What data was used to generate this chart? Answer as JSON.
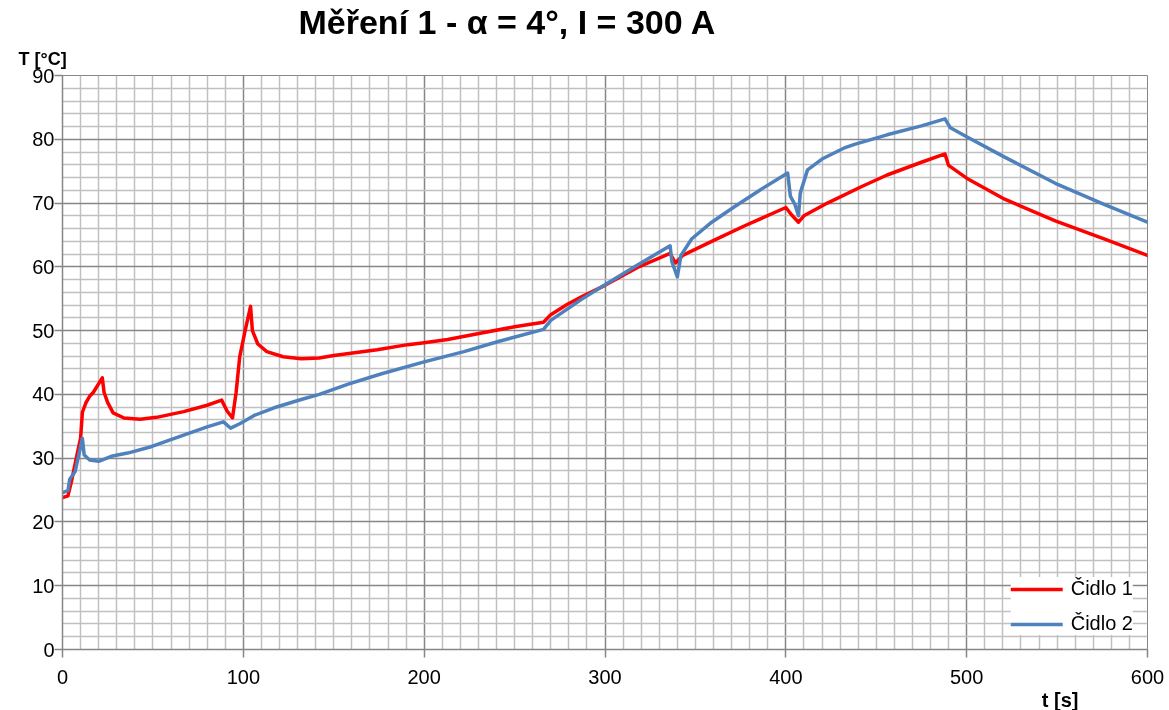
{
  "chart_data": {
    "type": "line",
    "title": "Měření 1 - α = 4°, I = 300 A",
    "xlabel": "t [s]",
    "ylabel": "T [°C]",
    "xlim": [
      0,
      600
    ],
    "ylim": [
      0,
      90
    ],
    "xticks": [
      0,
      100,
      200,
      300,
      400,
      500,
      600
    ],
    "yticks": [
      0,
      10,
      20,
      30,
      40,
      50,
      60,
      70,
      80,
      90
    ],
    "grid": true,
    "legend": "bottom right",
    "series": [
      {
        "name": "Čidlo 1",
        "color": "#ff0000",
        "x": [
          0,
          3,
          5,
          8,
          10,
          11,
          13,
          15,
          17,
          22,
          23,
          25,
          28,
          34,
          43,
          52,
          67,
          80,
          88,
          91,
          94,
          96,
          98,
          101,
          104,
          105,
          108,
          113,
          122,
          132,
          142,
          150,
          174,
          191,
          200,
          213,
          231,
          250,
          266,
          270,
          279,
          287,
          300,
          318,
          336,
          339,
          343,
          359,
          377,
          400,
          403,
          407,
          410,
          423,
          442,
          456,
          475,
          488,
          490,
          500,
          521,
          549,
          576,
          600
        ],
        "values": [
          23.8,
          24.1,
          26.4,
          30.5,
          33.1,
          37.2,
          38.7,
          39.7,
          40.3,
          42.6,
          40.3,
          38.7,
          37.1,
          36.3,
          36.1,
          36.4,
          37.3,
          38.3,
          39.1,
          37.4,
          36.3,
          40.3,
          45.9,
          50,
          53.8,
          50,
          47.9,
          46.7,
          45.9,
          45.6,
          45.7,
          46.1,
          47,
          47.8,
          48.1,
          48.6,
          49.6,
          50.6,
          51.3,
          52.5,
          54.1,
          55.3,
          57.1,
          59.9,
          62.1,
          60.6,
          61.8,
          64,
          66.4,
          69.3,
          68.2,
          67,
          68,
          70,
          72.6,
          74.4,
          76.4,
          77.7,
          75.9,
          73.9,
          70.6,
          67.2,
          64.4,
          61.8
        ]
      },
      {
        "name": "Čidlo 2",
        "color": "#4f81bd",
        "x": [
          0,
          3,
          4,
          7,
          9,
          11,
          12,
          15,
          20,
          27,
          36,
          49,
          67,
          80,
          89,
          93,
          98,
          106,
          117,
          132,
          142,
          158,
          176,
          200,
          222,
          241,
          266,
          270,
          287,
          300,
          318,
          336,
          337,
          340,
          342,
          348,
          359,
          372,
          386,
          401,
          402.5,
          405,
          407,
          408,
          412,
          420,
          432,
          438,
          456,
          475,
          488,
          491,
          500,
          521,
          549,
          576,
          600
        ],
        "values": [
          24.6,
          24.9,
          26.7,
          27.9,
          30.5,
          33.1,
          30.5,
          29.7,
          29.5,
          30.3,
          30.8,
          31.8,
          33.6,
          34.9,
          35.7,
          34.7,
          35.4,
          36.7,
          37.9,
          39.2,
          40,
          41.6,
          43.2,
          45.1,
          46.7,
          48.3,
          50.2,
          51.6,
          54.9,
          57.2,
          60.3,
          63.3,
          60.8,
          58.4,
          61.8,
          64.4,
          67,
          69.5,
          72.1,
          74.7,
          71.1,
          69.8,
          68,
          71.6,
          75.2,
          76.9,
          78.6,
          79.2,
          80.7,
          82.1,
          83.2,
          81.8,
          80.4,
          77.2,
          73.1,
          69.8,
          67
        ]
      }
    ]
  }
}
